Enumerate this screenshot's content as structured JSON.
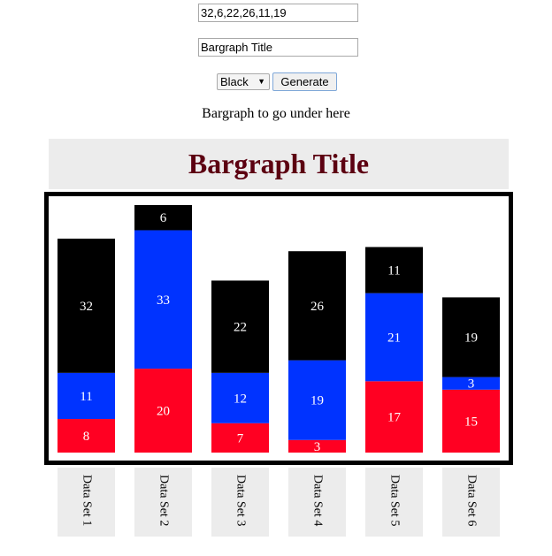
{
  "form": {
    "values_input": "32,6,22,26,11,19",
    "title_input": "Bargraph Title",
    "color_select": "Black",
    "generate_label": "Generate",
    "helper_text": "Bargraph to go under here"
  },
  "chart_data": {
    "type": "bar",
    "stacked": true,
    "title": "Bargraph Title",
    "categories": [
      "Data Set 1",
      "Data Set 2",
      "Data Set 3",
      "Data Set 4",
      "Data Set 5",
      "Data Set 6"
    ],
    "series": [
      {
        "color": "#ff0022",
        "values": [
          8,
          20,
          7,
          3,
          17,
          15
        ]
      },
      {
        "color": "#0033ff",
        "values": [
          11,
          33,
          12,
          19,
          21,
          3
        ]
      },
      {
        "color": "#000000",
        "values": [
          32,
          6,
          22,
          26,
          11,
          19
        ]
      }
    ],
    "title_color": "#5c0011",
    "label_color": "#ffffff",
    "ylim": [
      0,
      59
    ]
  }
}
